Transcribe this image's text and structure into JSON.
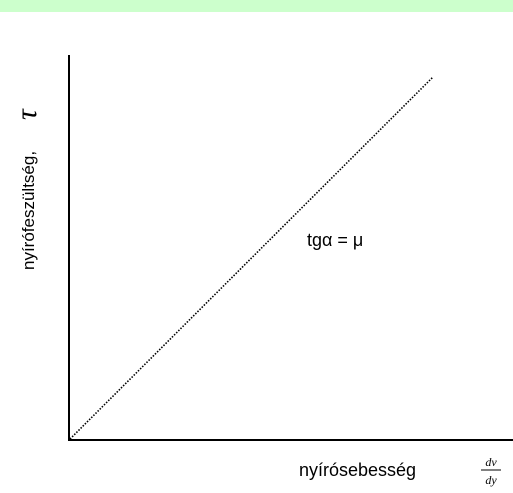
{
  "diagram": {
    "y_label": "nyírófeszültség,",
    "y_symbol": "τ",
    "x_label": "nyírósebesség",
    "x_fraction": {
      "numerator": "dv",
      "denominator": "dy"
    },
    "annotation": "tgα = μ"
  }
}
